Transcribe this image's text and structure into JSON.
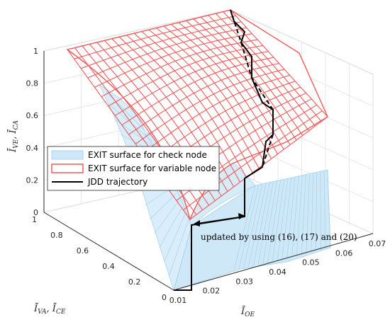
{
  "chart_data": {
    "type": "surface",
    "xlabel": "Ī_OE",
    "ylabel": "Ī_VA, Ī_CE",
    "zlabel": "Ī_VE, Ī_CA",
    "x_ticks": [
      "0.01",
      "0.02",
      "0.03",
      "0.04",
      "0.05",
      "0.06",
      "0.07"
    ],
    "y_ticks": [
      "0",
      "0.2",
      "0.4",
      "0.6",
      "0.8",
      "1"
    ],
    "z_ticks": [
      "0",
      "0.2",
      "0.4",
      "0.6",
      "0.8",
      "1"
    ],
    "xlim": [
      0.01,
      0.07
    ],
    "ylim": [
      0,
      1
    ],
    "zlim": [
      0,
      1
    ],
    "grid": true,
    "legend_position": "center-left",
    "legend": [
      {
        "label": "EXIT surface for check node",
        "style": "filled surface",
        "color": "#cfe8f7"
      },
      {
        "label": "EXIT surface for variable node",
        "style": "mesh surface",
        "color": "#f25a5a"
      },
      {
        "label": "JDD trajectory",
        "style": "line",
        "color": "#000000"
      }
    ],
    "series": [
      {
        "name": "EXIT surface for check node",
        "kind": "surface",
        "description_points": [
          {
            "x": 0.01,
            "y": 0.0,
            "z": 0.0
          },
          {
            "x": 0.01,
            "y": 1.0,
            "z": 1.0
          },
          {
            "x": 0.07,
            "y": 0.0,
            "z": 0.0
          },
          {
            "x": 0.07,
            "y": 1.0,
            "z": 1.0
          }
        ]
      },
      {
        "name": "EXIT surface for variable node",
        "kind": "surface",
        "description_points": [
          {
            "x": 0.01,
            "y": 0.0,
            "z": 0.0
          },
          {
            "x": 0.01,
            "y": 1.0,
            "z": 1.0
          },
          {
            "x": 0.07,
            "y": 0.0,
            "z": 0.45
          },
          {
            "x": 0.07,
            "y": 1.0,
            "z": 1.0
          }
        ]
      },
      {
        "name": "JDD trajectory",
        "kind": "line",
        "points": [
          {
            "x": 0.01,
            "y": 0.0,
            "z": 0.0
          },
          {
            "x": 0.01,
            "y": 0.0,
            "z": 0.25
          },
          {
            "x": 0.015,
            "y": 0.05,
            "z": 0.28
          },
          {
            "x": 0.02,
            "y": 0.1,
            "z": 0.55
          },
          {
            "x": 0.03,
            "y": 0.25,
            "z": 0.72
          },
          {
            "x": 0.035,
            "y": 0.4,
            "z": 0.85
          },
          {
            "x": 0.04,
            "y": 0.55,
            "z": 0.93
          },
          {
            "x": 0.045,
            "y": 0.75,
            "z": 0.97
          },
          {
            "x": 0.05,
            "y": 0.95,
            "z": 1.0
          }
        ]
      }
    ],
    "annotation": "updated by using (16), (17) and (20)"
  }
}
